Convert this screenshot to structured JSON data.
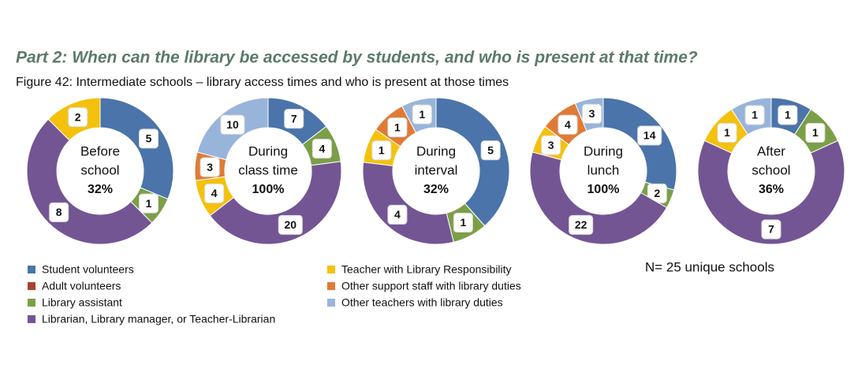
{
  "header": {
    "title": "Part 2: When can the library be accessed by students, and who is present at that time?",
    "caption": "Figure 42: Intermediate schools – library access times and who is present at those times",
    "note": "N= 25 unique schools"
  },
  "chart_data": [
    {
      "type": "donut",
      "center": [
        "Before",
        "school",
        "32%"
      ],
      "categories": [
        "Student volunteers",
        "Adult volunteers",
        "Library assistant",
        "Librarian, Library manager, or Teacher-Librarian",
        "Teacher with Library Responsibility",
        "Other support staff with library duties",
        "Other teachers with library duties"
      ],
      "colors": [
        "#4a74aa",
        "#a8432f",
        "#7b9f47",
        "#735594",
        "#f4c10c",
        "#e07b36",
        "#98b4da"
      ],
      "values": [
        5,
        0,
        1,
        8,
        2,
        0,
        0
      ]
    },
    {
      "type": "donut",
      "center": [
        "During",
        "class time",
        "100%"
      ],
      "categories": [
        "Student volunteers",
        "Adult volunteers",
        "Library assistant",
        "Librarian, Library manager, or Teacher-Librarian",
        "Teacher with Library Responsibility",
        "Other support staff with library duties",
        "Other teachers with library duties"
      ],
      "colors": [
        "#4a74aa",
        "#a8432f",
        "#7b9f47",
        "#735594",
        "#f4c10c",
        "#e07b36",
        "#98b4da"
      ],
      "values": [
        7,
        0,
        4,
        20,
        4,
        3,
        10
      ]
    },
    {
      "type": "donut",
      "center": [
        "During",
        "interval",
        "32%"
      ],
      "categories": [
        "Student volunteers",
        "Adult volunteers",
        "Library assistant",
        "Librarian, Library manager, or Teacher-Librarian",
        "Teacher with Library Responsibility",
        "Other support staff with library duties",
        "Other teachers with library duties"
      ],
      "colors": [
        "#4a74aa",
        "#a8432f",
        "#7b9f47",
        "#735594",
        "#f4c10c",
        "#e07b36",
        "#98b4da"
      ],
      "values": [
        5,
        0,
        1,
        4,
        1,
        1,
        1
      ]
    },
    {
      "type": "donut",
      "center": [
        "During",
        "lunch",
        "100%"
      ],
      "categories": [
        "Student volunteers",
        "Adult volunteers",
        "Library assistant",
        "Librarian, Library manager, or Teacher-Librarian",
        "Teacher with Library Responsibility",
        "Other support staff with library duties",
        "Other teachers with library duties"
      ],
      "colors": [
        "#4a74aa",
        "#a8432f",
        "#7b9f47",
        "#735594",
        "#f4c10c",
        "#e07b36",
        "#98b4da"
      ],
      "values": [
        14,
        0,
        2,
        22,
        3,
        4,
        3
      ]
    },
    {
      "type": "donut",
      "center": [
        "After",
        "school",
        "36%"
      ],
      "categories": [
        "Student volunteers",
        "Adult volunteers",
        "Library assistant",
        "Librarian, Library manager, or Teacher-Librarian",
        "Teacher with Library Responsibility",
        "Other support staff with library duties",
        "Other teachers with library duties"
      ],
      "colors": [
        "#4a74aa",
        "#a8432f",
        "#7b9f47",
        "#735594",
        "#f4c10c",
        "#e07b36",
        "#98b4da"
      ],
      "values": [
        1,
        0,
        1,
        7,
        1,
        0,
        1
      ]
    }
  ]
}
